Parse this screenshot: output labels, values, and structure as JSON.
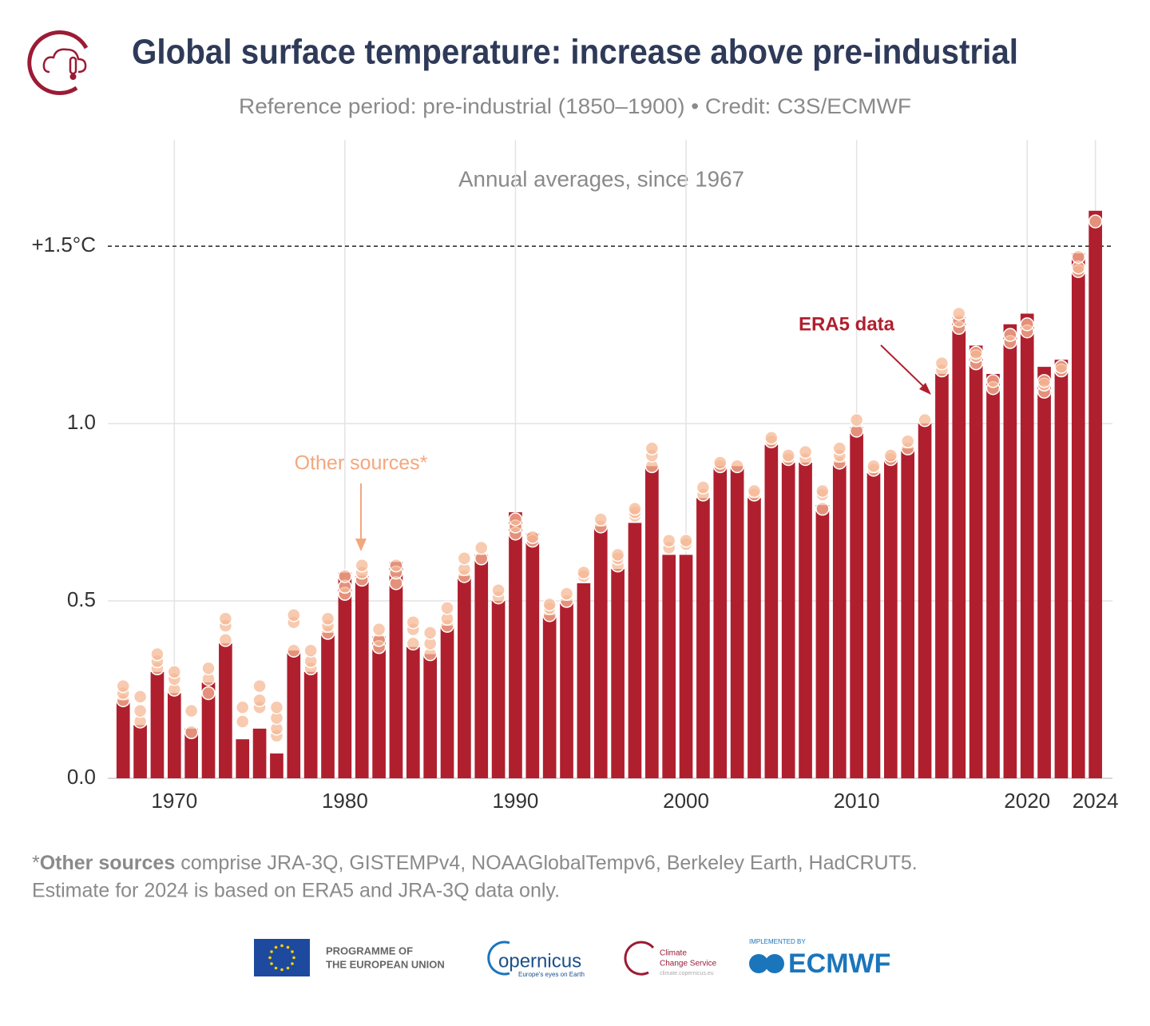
{
  "chart_data": {
    "type": "bar",
    "title": "Global surface temperature: increase above pre-industrial",
    "subtitle": "Reference period: pre-industrial (1850–1900) • Credit: C3S/ECMWF",
    "inner_title": "Annual averages, since 1967",
    "x": [
      1967,
      1968,
      1969,
      1970,
      1971,
      1972,
      1973,
      1974,
      1975,
      1976,
      1977,
      1978,
      1979,
      1980,
      1981,
      1982,
      1983,
      1984,
      1985,
      1986,
      1987,
      1988,
      1989,
      1990,
      1991,
      1992,
      1993,
      1994,
      1995,
      1996,
      1997,
      1998,
      1999,
      2000,
      2001,
      2002,
      2003,
      2004,
      2005,
      2006,
      2007,
      2008,
      2009,
      2010,
      2011,
      2012,
      2013,
      2014,
      2015,
      2016,
      2017,
      2018,
      2019,
      2020,
      2021,
      2022,
      2023,
      2024
    ],
    "values": [
      0.22,
      0.15,
      0.3,
      0.24,
      0.14,
      0.27,
      0.38,
      0.11,
      0.14,
      0.07,
      0.36,
      0.3,
      0.41,
      0.58,
      0.57,
      0.4,
      0.61,
      0.37,
      0.35,
      0.43,
      0.57,
      0.63,
      0.5,
      0.75,
      0.69,
      0.46,
      0.5,
      0.55,
      0.71,
      0.59,
      0.72,
      0.88,
      0.63,
      0.63,
      0.79,
      0.88,
      0.88,
      0.79,
      0.94,
      0.89,
      0.89,
      0.77,
      0.89,
      0.99,
      0.86,
      0.9,
      0.93,
      1.0,
      1.14,
      1.3,
      1.22,
      1.14,
      1.28,
      1.31,
      1.16,
      1.18,
      1.48,
      1.6
    ],
    "color": "#b01f2e",
    "other_sources": {
      "color": "#f5b896",
      "values": [
        [
          0.22,
          0.24,
          0.26
        ],
        [
          0.16,
          0.19,
          0.23
        ],
        [
          0.31,
          0.33,
          0.35
        ],
        [
          0.25,
          0.28,
          0.3
        ],
        [
          0.13,
          0.19
        ],
        [
          0.24,
          0.28,
          0.31
        ],
        [
          0.39,
          0.43,
          0.45
        ],
        [
          0.16,
          0.2
        ],
        [
          0.2,
          0.22,
          0.26
        ],
        [
          0.12,
          0.14,
          0.17,
          0.2
        ],
        [
          0.36,
          0.44,
          0.46
        ],
        [
          0.31,
          0.33,
          0.36
        ],
        [
          0.41,
          0.43,
          0.45
        ],
        [
          0.52,
          0.54,
          0.57
        ],
        [
          0.56,
          0.58,
          0.6
        ],
        [
          0.37,
          0.39,
          0.42
        ],
        [
          0.55,
          0.58,
          0.6
        ],
        [
          0.38,
          0.42,
          0.44
        ],
        [
          0.35,
          0.38,
          0.41
        ],
        [
          0.43,
          0.45,
          0.48
        ],
        [
          0.57,
          0.59,
          0.62
        ],
        [
          0.62,
          0.65
        ],
        [
          0.51,
          0.53
        ],
        [
          0.69,
          0.71,
          0.73
        ],
        [
          0.67,
          0.68
        ],
        [
          0.46,
          0.48,
          0.49
        ],
        [
          0.5,
          0.52
        ],
        [
          0.57,
          0.58
        ],
        [
          0.71,
          0.73
        ],
        [
          0.6,
          0.62,
          0.63
        ],
        [
          0.74,
          0.75,
          0.76
        ],
        [
          0.88,
          0.91,
          0.93
        ],
        [
          0.65,
          0.67
        ],
        [
          0.66,
          0.67
        ],
        [
          0.8,
          0.82
        ],
        [
          0.88,
          0.89
        ],
        [
          0.88
        ],
        [
          0.8,
          0.81
        ],
        [
          0.95,
          0.96
        ],
        [
          0.9,
          0.91
        ],
        [
          0.9,
          0.92
        ],
        [
          0.76,
          0.8,
          0.81
        ],
        [
          0.89,
          0.91,
          0.93
        ],
        [
          0.98,
          1.01
        ],
        [
          0.87,
          0.88
        ],
        [
          0.9,
          0.91
        ],
        [
          0.93,
          0.95
        ],
        [
          1.01
        ],
        [
          1.15,
          1.17
        ],
        [
          1.27,
          1.29,
          1.31
        ],
        [
          1.17,
          1.19,
          1.2
        ],
        [
          1.1,
          1.12
        ],
        [
          1.23,
          1.25
        ],
        [
          1.26,
          1.28
        ],
        [
          1.09,
          1.11,
          1.12
        ],
        [
          1.15,
          1.16
        ],
        [
          1.43,
          1.44,
          1.47
        ],
        [
          1.57
        ]
      ]
    },
    "xlim": [
      1966.1,
      2025
    ],
    "xticks": [
      1970,
      1980,
      1990,
      2000,
      2010,
      2020,
      2024
    ],
    "ylim": [
      0,
      1.8
    ],
    "yticks": [
      {
        "value": 0,
        "label": "0.0"
      },
      0.5,
      {
        "value": 1,
        "label": "1.0"
      },
      {
        "value": 1.5,
        "label": "+1.5°C"
      }
    ],
    "grid": true,
    "annotations": [
      "ERA5 data",
      "Other sources*"
    ],
    "footnote": [
      "*",
      "Other sources",
      " comprise JRA-3Q, GISTEMPv4, NOAAGlobalTempv6, Berkeley Earth, HadCRUT5."
    ],
    "footnote2": "Estimate for 2024 is based on ERA5 and JRA-3Q data only.",
    "logos": {
      "eu": [
        "PROGRAMME OF",
        "THE EUROPEAN UNION"
      ],
      "copernicus": [
        "opernicus",
        "Europe's eyes on Earth"
      ],
      "c3s": [
        "Climate",
        "Change Service",
        "climate.copernicus.eu"
      ],
      "ecmwf": [
        "IMPLEMENTED BY",
        "ECMWF"
      ]
    }
  }
}
